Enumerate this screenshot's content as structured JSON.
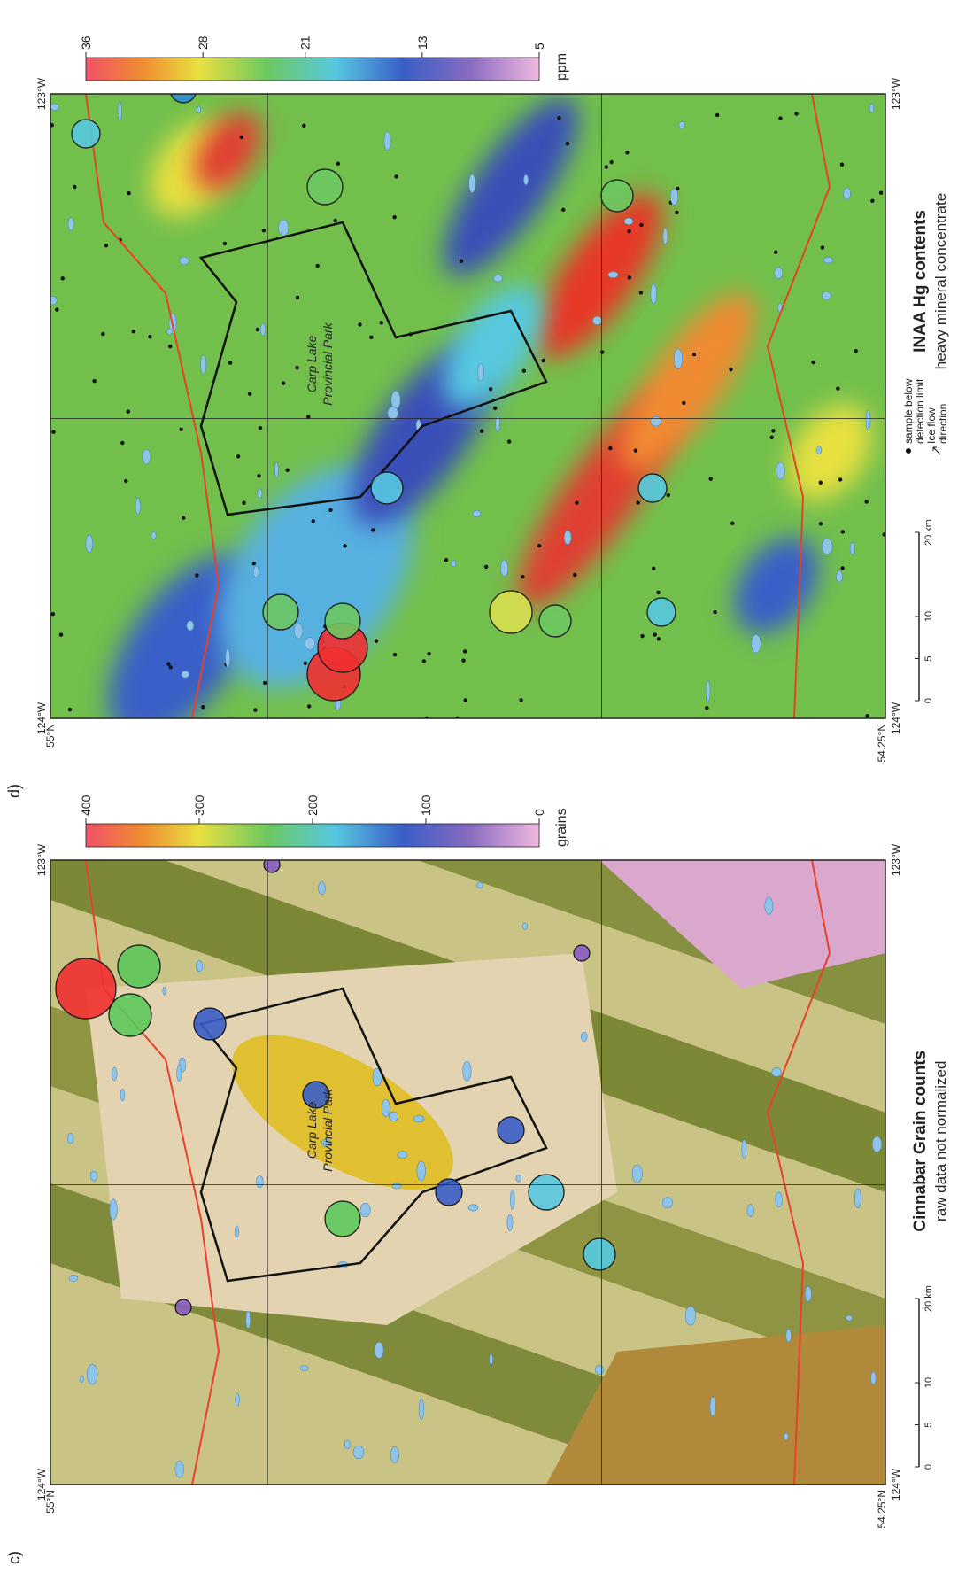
{
  "panels": [
    {
      "label": "c)",
      "title": "Cinnabar Grain counts",
      "subtitle": "raw data not normalized",
      "park": [
        "Carp Lake",
        "Provincial Park"
      ],
      "colorbar": {
        "unit": "grains",
        "ticks": [
          0,
          100,
          200,
          300,
          400
        ]
      },
      "coords": {
        "west": "124°W",
        "east": "123°W",
        "north": "55°N",
        "south": "54.25°N"
      },
      "scale_bar": [
        0,
        5,
        10,
        {
          "value": 20,
          "label": "20 km"
        }
      ]
    },
    {
      "label": "d)",
      "title": "INAA Hg contents",
      "subtitle": "heavy mineral concentrate",
      "park": [
        "Carp Lake",
        "Provincial Park"
      ],
      "colorbar": {
        "unit": "ppm",
        "ticks": [
          5,
          13,
          21,
          28,
          36
        ]
      },
      "coords": {
        "west": "124°W",
        "east": "123°W",
        "north": "55°N",
        "south": "54.25°N"
      },
      "scale_bar": [
        0,
        5,
        10,
        {
          "value": 20,
          "label": "20 km"
        }
      ],
      "legend": [
        "sample below",
        "detection limit",
        "Ice flow",
        "direction"
      ]
    }
  ]
}
